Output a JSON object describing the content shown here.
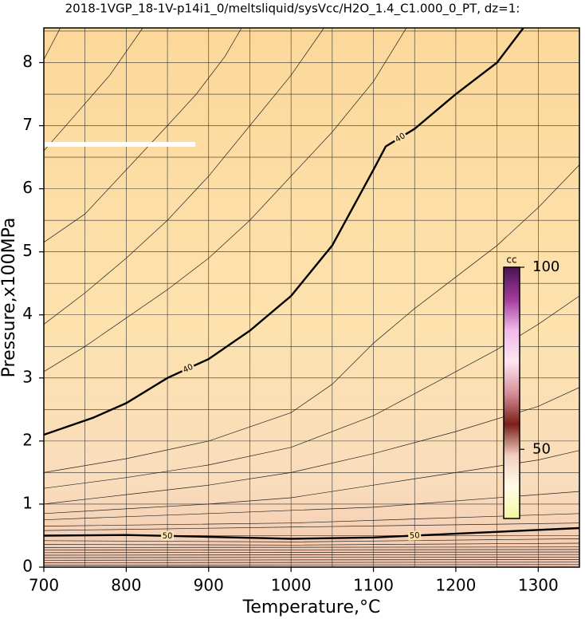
{
  "chart_data": {
    "type": "contour",
    "title": "2018-1VGP_18-1V-p14i1_0/meltsliquid/sysVcc/H2O_1.4_C1.000_0_PT, dz=1:",
    "xlabel": "Temperature,°C",
    "ylabel": "Pressure,x100MPa",
    "xlim": [
      700,
      1350
    ],
    "ylim": [
      0,
      8.55
    ],
    "xticks": [
      700,
      800,
      900,
      1000,
      1100,
      1200,
      1300
    ],
    "yticks": [
      0,
      1,
      2,
      3,
      4,
      5,
      6,
      7,
      8
    ],
    "xgrid": [
      750,
      800,
      850,
      900,
      950,
      1000,
      1050,
      1100,
      1150,
      1200,
      1250,
      1300
    ],
    "ygrid": [
      0.5,
      1,
      1.5,
      2,
      2.5,
      3,
      3.5,
      4,
      4.5,
      5,
      5.5,
      6,
      6.5,
      7,
      7.5,
      8,
      8.5
    ],
    "grid": true,
    "contours": [
      {
        "level": 40,
        "bold": true,
        "x": [
          700,
          760,
          800,
          850,
          900,
          950,
          1000,
          1050,
          1100,
          1115,
          1150,
          1200,
          1250,
          1282
        ],
        "y": [
          2.1,
          2.37,
          2.6,
          3.0,
          3.3,
          3.75,
          4.3,
          5.1,
          6.3,
          6.67,
          6.95,
          7.5,
          8.0,
          8.55
        ]
      },
      {
        "x": [
          700,
          750,
          800,
          850,
          900,
          950,
          1000,
          1050,
          1100,
          1140
        ],
        "y": [
          3.1,
          3.5,
          3.95,
          4.4,
          4.9,
          5.5,
          6.2,
          6.9,
          7.7,
          8.55
        ]
      },
      {
        "x": [
          700,
          750,
          800,
          850,
          900,
          950,
          1000,
          1040
        ],
        "y": [
          3.85,
          4.35,
          4.9,
          5.5,
          6.2,
          7.0,
          7.8,
          8.55
        ]
      },
      {
        "x": [
          700,
          750,
          800,
          850,
          885,
          920,
          940
        ],
        "y": [
          5.15,
          5.6,
          6.3,
          7.0,
          7.5,
          8.1,
          8.55
        ]
      },
      {
        "x": [
          700,
          740,
          780,
          820
        ],
        "y": [
          6.6,
          7.2,
          7.8,
          8.55
        ]
      },
      {
        "x": [
          700,
          720
        ],
        "y": [
          8.05,
          8.55
        ]
      },
      {
        "x": [
          700,
          800,
          900,
          1000,
          1050,
          1100,
          1150,
          1200,
          1250,
          1300,
          1350
        ],
        "y": [
          1.5,
          1.72,
          2.0,
          2.45,
          2.9,
          3.55,
          4.1,
          4.6,
          5.1,
          5.7,
          6.38
        ]
      },
      {
        "x": [
          700,
          800,
          900,
          1000,
          1100,
          1150,
          1200,
          1250,
          1300,
          1350
        ],
        "y": [
          1.25,
          1.42,
          1.62,
          1.9,
          2.4,
          2.75,
          3.1,
          3.45,
          3.85,
          4.3
        ]
      },
      {
        "x": [
          700,
          800,
          900,
          1000,
          1100,
          1200,
          1300,
          1350
        ],
        "y": [
          1.0,
          1.15,
          1.3,
          1.5,
          1.8,
          2.15,
          2.55,
          2.85
        ]
      },
      {
        "x": [
          700,
          900,
          1000,
          1100,
          1200,
          1300,
          1350
        ],
        "y": [
          0.85,
          1.0,
          1.1,
          1.3,
          1.5,
          1.7,
          1.85
        ]
      },
      {
        "x": [
          700,
          900,
          1100,
          1350
        ],
        "y": [
          0.75,
          0.85,
          0.95,
          1.2
        ]
      },
      {
        "x": [
          700,
          1000,
          1350
        ],
        "y": [
          0.65,
          0.7,
          0.85
        ]
      },
      {
        "x": [
          700,
          1350
        ],
        "y": [
          0.58,
          0.7
        ]
      },
      {
        "level": 50,
        "bold": true,
        "x": [
          700,
          800,
          900,
          1000,
          1100,
          1200,
          1350
        ],
        "y": [
          0.5,
          0.51,
          0.48,
          0.45,
          0.47,
          0.53,
          0.62
        ]
      },
      {
        "x": [
          700,
          1000,
          1350
        ],
        "y": [
          0.42,
          0.4,
          0.45
        ]
      },
      {
        "x": [
          700,
          1000,
          1350
        ],
        "y": [
          0.36,
          0.35,
          0.38
        ]
      },
      {
        "x": [
          700,
          1350
        ],
        "y": [
          0.31,
          0.32
        ]
      },
      {
        "x": [
          700,
          1350
        ],
        "y": [
          0.27,
          0.28
        ]
      },
      {
        "x": [
          700,
          1350
        ],
        "y": [
          0.23,
          0.24
        ]
      },
      {
        "x": [
          700,
          1350
        ],
        "y": [
          0.19,
          0.2
        ]
      },
      {
        "x": [
          700,
          1350
        ],
        "y": [
          0.15,
          0.16
        ]
      },
      {
        "x": [
          700,
          1350
        ],
        "y": [
          0.11,
          0.12
        ]
      },
      {
        "x": [
          700,
          1350
        ],
        "y": [
          0.07,
          0.08
        ]
      },
      {
        "x": [
          700,
          1350
        ],
        "y": [
          0.03,
          0.04
        ]
      }
    ],
    "colorbar": {
      "label": "cc",
      "lim": [
        31,
        100
      ],
      "ticks": [
        50,
        100
      ],
      "colors": [
        "#f4f8a0",
        "#fffbe8",
        "#f2d0c0",
        "#7a1f18",
        "#d8909a",
        "#fde6f2",
        "#f0b8e8",
        "#a03a9c",
        "#4a1450"
      ]
    }
  }
}
